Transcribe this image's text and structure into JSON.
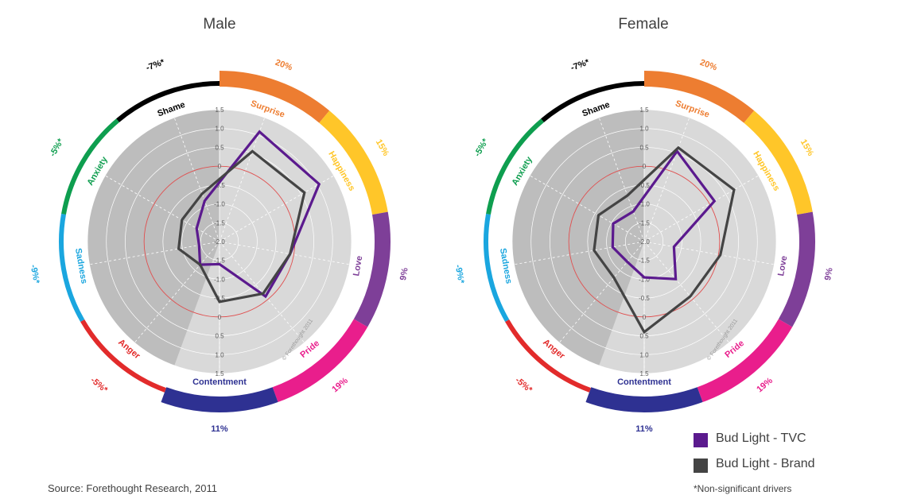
{
  "chart_data": [
    {
      "type": "radar",
      "title": "Male",
      "rlim": [
        -2.0,
        1.5
      ],
      "ticks": [
        "1.5",
        "1.0",
        "0.5",
        "0",
        "-0.5",
        "-1.0",
        "-1.5",
        "-2.0"
      ],
      "categories": [
        {
          "name": "Surprise",
          "pct": "20%",
          "color": "#ED7D31",
          "significant": true
        },
        {
          "name": "Happiness",
          "pct": "15%",
          "color": "#FFC629",
          "significant": true
        },
        {
          "name": "Love",
          "pct": "9%",
          "color": "#7E3F98",
          "significant": true
        },
        {
          "name": "Pride",
          "pct": "19%",
          "color": "#E91E8C",
          "significant": true
        },
        {
          "name": "Contentment",
          "pct": "11%",
          "color": "#2E3192",
          "significant": true
        },
        {
          "name": "Anger",
          "pct": "-5%*",
          "color": "#E22B2B",
          "significant": false
        },
        {
          "name": "Sadness",
          "pct": "-9%*",
          "color": "#1AA6DF",
          "significant": false
        },
        {
          "name": "Anxiety",
          "pct": "-5%*",
          "color": "#0E9E4F",
          "significant": false
        },
        {
          "name": "Shame",
          "pct": "-7%*",
          "color": "#000000",
          "significant": false
        }
      ],
      "series": [
        {
          "name": "Bud Light - TVC",
          "color": "#5B1A8E",
          "values": [
            1.1,
            1.05,
            -0.1,
            -0.1,
            -1.4,
            -1.2,
            -1.45,
            -1.3,
            -0.85
          ]
        },
        {
          "name": "Bud Light - Brand",
          "color": "#444444",
          "values": [
            0.55,
            0.6,
            -0.1,
            -0.2,
            -0.4,
            -1.2,
            -0.9,
            -0.85,
            -0.65
          ]
        }
      ],
      "watermark": "© Forethought 2011"
    },
    {
      "type": "radar",
      "title": "Female",
      "rlim": [
        -2.0,
        1.5
      ],
      "ticks": [
        "1.5",
        "1.0",
        "0.5",
        "0",
        "-0.5",
        "-1.0",
        "-1.5",
        "-2.0"
      ],
      "categories": [
        {
          "name": "Surprise",
          "pct": "20%",
          "color": "#ED7D31",
          "significant": true
        },
        {
          "name": "Happiness",
          "pct": "15%",
          "color": "#FFC629",
          "significant": true
        },
        {
          "name": "Love",
          "pct": "9%",
          "color": "#7E3F98",
          "significant": true
        },
        {
          "name": "Pride",
          "pct": "19%",
          "color": "#E91E8C",
          "significant": true
        },
        {
          "name": "Contentment",
          "pct": "11%",
          "color": "#2E3192",
          "significant": true
        },
        {
          "name": "Anger",
          "pct": "-5%*",
          "color": "#E22B2B",
          "significant": false
        },
        {
          "name": "Sadness",
          "pct": "-9%*",
          "color": "#1AA6DF",
          "significant": false
        },
        {
          "name": "Anxiety",
          "pct": "-5%*",
          "color": "#0E9E4F",
          "significant": false
        },
        {
          "name": "Shame",
          "pct": "-7%*",
          "color": "#000000",
          "significant": false
        }
      ],
      "series": [
        {
          "name": "Bud Light - TVC",
          "color": "#5B1A8E",
          "values": [
            0.55,
            0.15,
            -1.2,
            -0.7,
            -1.05,
            -1.3,
            -1.15,
            -1.05,
            -1.15
          ]
        },
        {
          "name": "Bud Light - Brand",
          "color": "#444444",
          "values": [
            0.65,
            0.75,
            0.05,
            -0.1,
            0.4,
            -0.75,
            -0.65,
            -0.6,
            -0.7
          ]
        }
      ],
      "watermark": "© Forethought 2011"
    }
  ],
  "legend": [
    {
      "label": "Bud Light - TVC",
      "color": "#5B1A8E"
    },
    {
      "label": "Bud Light - Brand",
      "color": "#444444"
    }
  ],
  "source": "Source: Forethought Research, 2011",
  "footnote": "*Non-significant drivers"
}
